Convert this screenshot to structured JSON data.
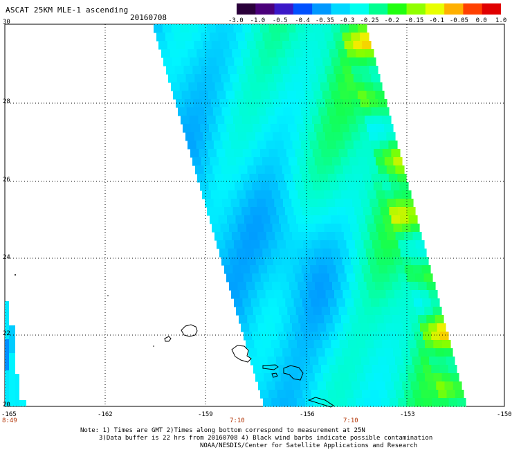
{
  "header": {
    "title": "ASCAT 25KM MLE-1 ascending",
    "date": "20160708"
  },
  "colorbar": {
    "labels": [
      "-3.0",
      "-1.0",
      "-0.5",
      "-0.4",
      "-0.35",
      "-0.3",
      "-0.25",
      "-0.2",
      "-0.15",
      "-0.1",
      "-0.05",
      "0.0",
      "1.0"
    ],
    "colors": [
      "#2a003a",
      "#4a007a",
      "#3a18c8",
      "#0050ff",
      "#0098ff",
      "#00d8ff",
      "#00ffee",
      "#00ff90",
      "#20ff10",
      "#90ff00",
      "#e8ff00",
      "#ffb000",
      "#ff4000",
      "#e00000"
    ]
  },
  "axes": {
    "y_ticks": [
      "30",
      "28",
      "26",
      "24",
      "22",
      "20"
    ],
    "x_ticks": [
      "-165",
      "-162",
      "-159",
      "-156",
      "-153",
      "-150"
    ],
    "time_labels": [
      "8:49",
      "7:10",
      "7:10"
    ]
  },
  "map": {
    "lon_range": [
      -165,
      -150
    ],
    "lat_range": [
      20,
      30
    ],
    "grid": "dotted",
    "swath_value_range": [
      -0.4,
      -0.05
    ]
  },
  "notes": {
    "line1": "Note: 1) Times are GMT 2)Times along bottom correspond to measurement at 25N",
    "line2": "3)Data buffer is 22 hrs from 20160708 4) Black wind barbs indicate possible contamination",
    "line3": "NOAA/NESDIS/Center for Satellite Applications and Research"
  }
}
